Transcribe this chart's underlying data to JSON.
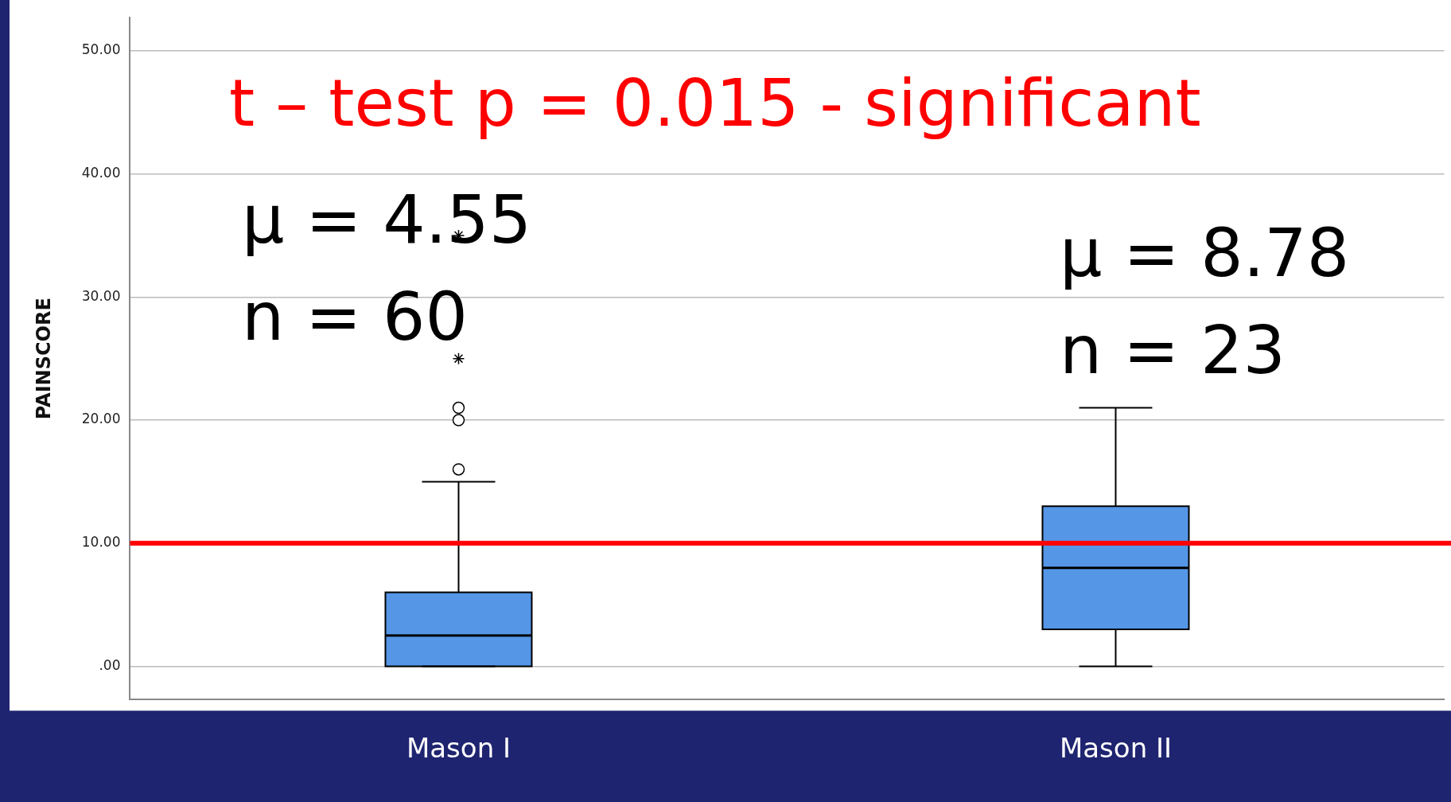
{
  "chart_data": {
    "type": "box",
    "categories": [
      "Mason I",
      "Mason II"
    ],
    "boxes": [
      {
        "low": 0,
        "q1": 0,
        "median": 2.5,
        "q3": 6,
        "high": 15,
        "outliers": [
          16,
          20,
          21,
          25,
          35
        ]
      },
      {
        "low": 0,
        "q1": 3,
        "median": 8,
        "q3": 13,
        "high": 21
      }
    ],
    "color": "#5596e6",
    "ylabel": "PAINSCORE",
    "ylim": [
      -2.7,
      52.7
    ],
    "yticks": [
      {
        "value": 0,
        "label": ".00"
      },
      {
        "value": 10,
        "label": "10.00"
      },
      {
        "value": 20,
        "label": "20.00"
      },
      {
        "value": 30,
        "label": "30.00"
      },
      {
        "value": 40,
        "label": "40.00"
      },
      {
        "value": 50,
        "label": "50.00"
      }
    ],
    "grid": "y",
    "ref_lines": [
      {
        "axis": "y",
        "value": 10,
        "color": "#ff0000"
      }
    ],
    "annotations": [
      "t – test p = 0.015 - significant",
      "μ = 4.55",
      "n = 60",
      "μ = 8.78",
      "n = 23"
    ]
  }
}
